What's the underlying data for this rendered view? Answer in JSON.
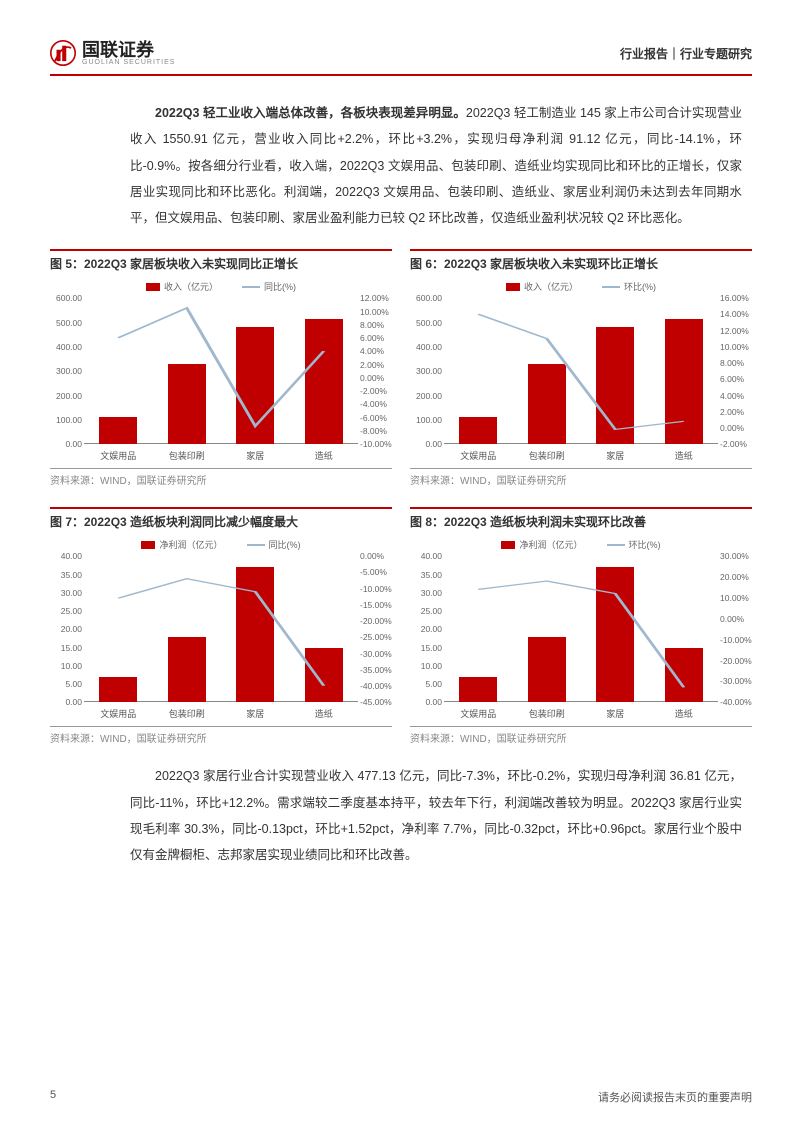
{
  "header": {
    "company_cn": "国联证券",
    "company_en": "GUOLIAN SECURITIES",
    "right": "行业报告｜行业专题研究"
  },
  "paragraph1": {
    "bold": "2022Q3 轻工业收入端总体改善，各板块表现差异明显。",
    "rest": "2022Q3 轻工制造业 145 家上市公司合计实现营业收入 1550.91 亿元，营业收入同比+2.2%，环比+3.2%，实现归母净利润 91.12 亿元，同比-14.1%，环比-0.9%。按各细分行业看，收入端，2022Q3 文娱用品、包装印刷、造纸业均实现同比和环比的正增长，仅家居业实现同比和环比恶化。利润端，2022Q3 文娱用品、包装印刷、造纸业、家居业利润仍未达到去年同期水平，但文娱用品、包装印刷、家居业盈利能力已较 Q2 环比改善，仅造纸业盈利状况较 Q2 环比恶化。"
  },
  "charts": {
    "source": "资料来源：WIND，国联证券研究所",
    "categories": [
      "文娱用品",
      "包装印刷",
      "家居",
      "造纸"
    ],
    "bar_color": "#c00000",
    "line_color": "#9fb8cd",
    "c5": {
      "title": "图 5：2022Q3 家居板块收入未实现同比正增长",
      "legend_bar": "收入（亿元）",
      "legend_line": "同比(%)",
      "y_left": {
        "min": 0,
        "max": 600,
        "step": 100,
        "fmt": ".00"
      },
      "y_right": {
        "min": -10,
        "max": 12,
        "step": 2,
        "suffix": "%",
        "fmt": ".00"
      },
      "bars": [
        110,
        330,
        480,
        515
      ],
      "line": [
        6.0,
        10.5,
        -7.3,
        4.0
      ]
    },
    "c6": {
      "title": "图 6：2022Q3 家居板块收入未实现环比正增长",
      "legend_bar": "收入（亿元）",
      "legend_line": "环比(%)",
      "y_left": {
        "min": 0,
        "max": 600,
        "step": 100,
        "fmt": ".00"
      },
      "y_right": {
        "min": -2,
        "max": 16,
        "step": 2,
        "suffix": "%",
        "fmt": ".00"
      },
      "bars": [
        110,
        330,
        480,
        515
      ],
      "line": [
        14.0,
        11.0,
        -0.2,
        0.8
      ]
    },
    "c7": {
      "title": "图 7：2022Q3 造纸板块利润同比减少幅度最大",
      "legend_bar": "净利润（亿元）",
      "legend_line": "同比(%)",
      "y_left": {
        "min": 0,
        "max": 40,
        "step": 5,
        "fmt": ".00"
      },
      "y_right": {
        "min": -45,
        "max": 0,
        "step": 5,
        "suffix": "%",
        "fmt": ".00"
      },
      "bars": [
        7,
        18,
        37,
        15
      ],
      "line": [
        -13,
        -7,
        -11,
        -40
      ]
    },
    "c8": {
      "title": "图 8：2022Q3 造纸板块利润未实现环比改善",
      "legend_bar": "净利润（亿元）",
      "legend_line": "环比(%)",
      "y_left": {
        "min": 0,
        "max": 40,
        "step": 5,
        "fmt": ".00"
      },
      "y_right": {
        "min": -40,
        "max": 30,
        "step": 10,
        "suffix": "%",
        "fmt": ".00"
      },
      "bars": [
        7,
        18,
        37,
        15
      ],
      "line": [
        14,
        18,
        12,
        -33
      ]
    }
  },
  "paragraph2": "2022Q3 家居行业合计实现营业收入 477.13 亿元，同比-7.3%，环比-0.2%，实现归母净利润 36.81 亿元，同比-11%，环比+12.2%。需求端较二季度基本持平，较去年下行，利润端改善较为明显。2022Q3 家居行业实现毛利率 30.3%，同比-0.13pct，环比+1.52pct，净利率 7.7%，同比-0.32pct，环比+0.96pct。家居行业个股中仅有金牌橱柜、志邦家居实现业绩同比和环比改善。",
  "footer": {
    "page": "5",
    "disclaimer": "请务必阅读报告末页的重要声明"
  }
}
